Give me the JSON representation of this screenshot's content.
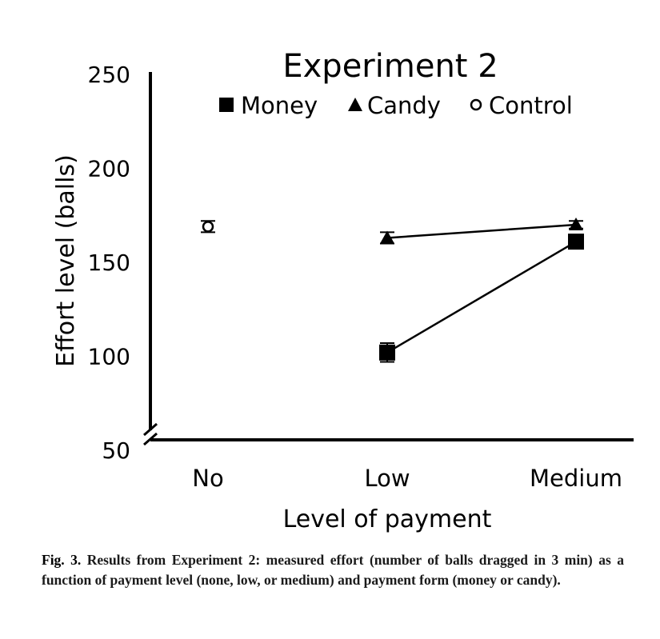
{
  "chart_data": {
    "type": "line",
    "title": "Experiment 2",
    "xlabel": "Level of payment",
    "ylabel": "Effort level (balls)",
    "categories": [
      "No",
      "Low",
      "Medium"
    ],
    "ylim": [
      50,
      250
    ],
    "yticks": [
      50,
      100,
      150,
      200,
      250
    ],
    "axis_break": true,
    "grid": false,
    "legend_position": "top",
    "series": [
      {
        "name": "Money",
        "marker": "square",
        "values": [
          null,
          102,
          161
        ],
        "errors": [
          null,
          5,
          2
        ],
        "connected": true
      },
      {
        "name": "Candy",
        "marker": "triangle",
        "values": [
          null,
          163,
          170
        ],
        "errors": [
          null,
          3,
          2
        ],
        "connected": true
      },
      {
        "name": "Control",
        "marker": "circle-open",
        "values": [
          169,
          null,
          null
        ],
        "errors": [
          3,
          null,
          null
        ],
        "connected": false
      }
    ]
  },
  "caption": {
    "label": "Fig. 3.",
    "text": " Results from Experiment 2: measured effort (number of balls dragged in 3 min) as a function of payment level (none, low, or medium) and payment form (money or candy)."
  }
}
